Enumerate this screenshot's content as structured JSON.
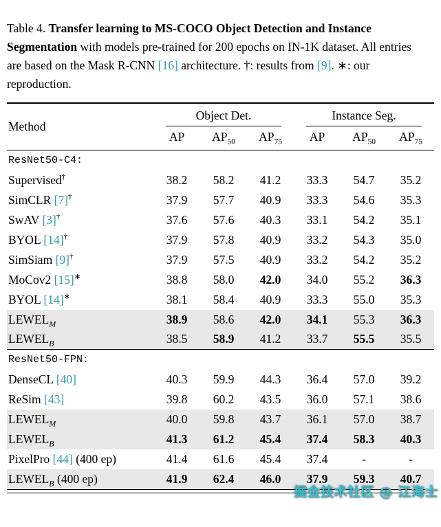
{
  "caption": {
    "segments": [
      {
        "type": "text",
        "v": "Table 4. "
      },
      {
        "type": "bold",
        "v": "Transfer learning to MS-COCO Object Detection and Instance Segmentation"
      },
      {
        "type": "text",
        "v": " with models pre-trained for 200 epochs on IN-1K dataset. All entries are based on the Mask R-CNN "
      },
      {
        "type": "cite",
        "v": "[16]"
      },
      {
        "type": "text",
        "v": " architecture. †: results from "
      },
      {
        "type": "cite",
        "v": "[9]"
      },
      {
        "type": "text",
        "v": ". ∗: our reproduction."
      }
    ]
  },
  "table": {
    "method_header": "Method",
    "groups": [
      {
        "label": "Object Det."
      },
      {
        "label": "Instance Seg."
      }
    ],
    "columns": [
      {
        "base": "AP",
        "sub": ""
      },
      {
        "base": "AP",
        "sub": "50"
      },
      {
        "base": "AP",
        "sub": "75"
      },
      {
        "base": "AP",
        "sub": ""
      },
      {
        "base": "AP",
        "sub": "50"
      },
      {
        "base": "AP",
        "sub": "75"
      }
    ],
    "sections": [
      {
        "header": "ResNet50-C4:",
        "rows": [
          {
            "method": [
              {
                "type": "text",
                "v": "Supervised"
              },
              {
                "type": "sup",
                "v": "†"
              }
            ],
            "values": [
              "38.2",
              "58.2",
              "41.2",
              "33.3",
              "54.7",
              "35.2"
            ],
            "bold": [],
            "highlight": false
          },
          {
            "method": [
              {
                "type": "text",
                "v": "SimCLR "
              },
              {
                "type": "cite",
                "v": "[7]"
              },
              {
                "type": "sup",
                "v": "†"
              }
            ],
            "values": [
              "37.9",
              "57.7",
              "40.9",
              "33.3",
              "54.6",
              "35.3"
            ],
            "bold": [],
            "highlight": false
          },
          {
            "method": [
              {
                "type": "text",
                "v": "SwAV "
              },
              {
                "type": "cite",
                "v": "[3]"
              },
              {
                "type": "sup",
                "v": "†"
              }
            ],
            "values": [
              "37.6",
              "57.6",
              "40.3",
              "33.1",
              "54.2",
              "35.1"
            ],
            "bold": [],
            "highlight": false
          },
          {
            "method": [
              {
                "type": "text",
                "v": "BYOL "
              },
              {
                "type": "cite",
                "v": "[14]"
              },
              {
                "type": "sup",
                "v": "†"
              }
            ],
            "values": [
              "37.9",
              "57.8",
              "40.9",
              "33.2",
              "54.3",
              "35.0"
            ],
            "bold": [],
            "highlight": false
          },
          {
            "method": [
              {
                "type": "text",
                "v": "SimSiam "
              },
              {
                "type": "cite",
                "v": "[9]"
              },
              {
                "type": "sup",
                "v": "†"
              }
            ],
            "values": [
              "37.9",
              "57.5",
              "40.9",
              "33.2",
              "54.2",
              "35.2"
            ],
            "bold": [],
            "highlight": false
          },
          {
            "method": [
              {
                "type": "text",
                "v": "MoCov2 "
              },
              {
                "type": "cite",
                "v": "[15]"
              },
              {
                "type": "sup",
                "v": "∗"
              }
            ],
            "values": [
              "38.8",
              "58.0",
              "42.0",
              "34.0",
              "55.2",
              "36.3"
            ],
            "bold": [
              2,
              5
            ],
            "highlight": false
          },
          {
            "method": [
              {
                "type": "text",
                "v": "BYOL "
              },
              {
                "type": "cite",
                "v": "[14]"
              },
              {
                "type": "sup",
                "v": "∗"
              }
            ],
            "values": [
              "38.1",
              "58.4",
              "40.9",
              "33.3",
              "55.0",
              "35.3"
            ],
            "bold": [],
            "highlight": false
          },
          {
            "method": [
              {
                "type": "text",
                "v": "LEWEL"
              },
              {
                "type": "sub",
                "v": "M"
              }
            ],
            "values": [
              "38.9",
              "58.6",
              "42.0",
              "34.1",
              "55.3",
              "36.3"
            ],
            "bold": [
              0,
              2,
              3,
              5
            ],
            "highlight": true
          },
          {
            "method": [
              {
                "type": "text",
                "v": "LEWEL"
              },
              {
                "type": "sub",
                "v": "B"
              }
            ],
            "values": [
              "38.5",
              "58.9",
              "41.2",
              "33.7",
              "55.5",
              "35.5"
            ],
            "bold": [
              1,
              4
            ],
            "highlight": true
          }
        ]
      },
      {
        "header": "ResNet50-FPN:",
        "rows": [
          {
            "method": [
              {
                "type": "text",
                "v": "DenseCL "
              },
              {
                "type": "cite",
                "v": "[40]"
              }
            ],
            "values": [
              "40.3",
              "59.9",
              "44.3",
              "36.4",
              "57.0",
              "39.2"
            ],
            "bold": [],
            "highlight": false
          },
          {
            "method": [
              {
                "type": "text",
                "v": "ReSim "
              },
              {
                "type": "cite",
                "v": "[43]"
              }
            ],
            "values": [
              "39.8",
              "60.2",
              "43.5",
              "36.0",
              "57.1",
              "38.6"
            ],
            "bold": [],
            "highlight": false
          },
          {
            "method": [
              {
                "type": "text",
                "v": "LEWEL"
              },
              {
                "type": "sub",
                "v": "M"
              }
            ],
            "values": [
              "40.0",
              "59.8",
              "43.7",
              "36.1",
              "57.0",
              "38.7"
            ],
            "bold": [],
            "highlight": true
          },
          {
            "method": [
              {
                "type": "text",
                "v": "LEWEL"
              },
              {
                "type": "sub",
                "v": "B"
              }
            ],
            "values": [
              "41.3",
              "61.2",
              "45.4",
              "37.4",
              "58.3",
              "40.3"
            ],
            "bold": [
              0,
              1,
              2,
              3,
              4,
              5
            ],
            "highlight": true
          },
          {
            "method": [
              {
                "type": "text",
                "v": "PixelPro "
              },
              {
                "type": "cite",
                "v": "[44]"
              },
              {
                "type": "text",
                "v": " (400 ep)"
              }
            ],
            "values": [
              "41.4",
              "61.6",
              "45.4",
              "37.4",
              "-",
              "-"
            ],
            "bold": [],
            "highlight": false
          },
          {
            "method": [
              {
                "type": "text",
                "v": "LEWEL"
              },
              {
                "type": "sub",
                "v": "B"
              },
              {
                "type": "text",
                "v": " (400 ep)"
              }
            ],
            "values": [
              "41.9",
              "62.4",
              "46.0",
              "37.9",
              "59.3",
              "40.7"
            ],
            "bold": [
              0,
              1,
              2,
              3,
              4,
              5
            ],
            "highlight": true
          }
        ]
      }
    ]
  },
  "watermark": {
    "text": "掘金技术社区 @ 江海士"
  },
  "colors": {
    "cite": "#2e9ab0",
    "highlight": "#e8e8e8",
    "watermark": "#35c3d4"
  }
}
